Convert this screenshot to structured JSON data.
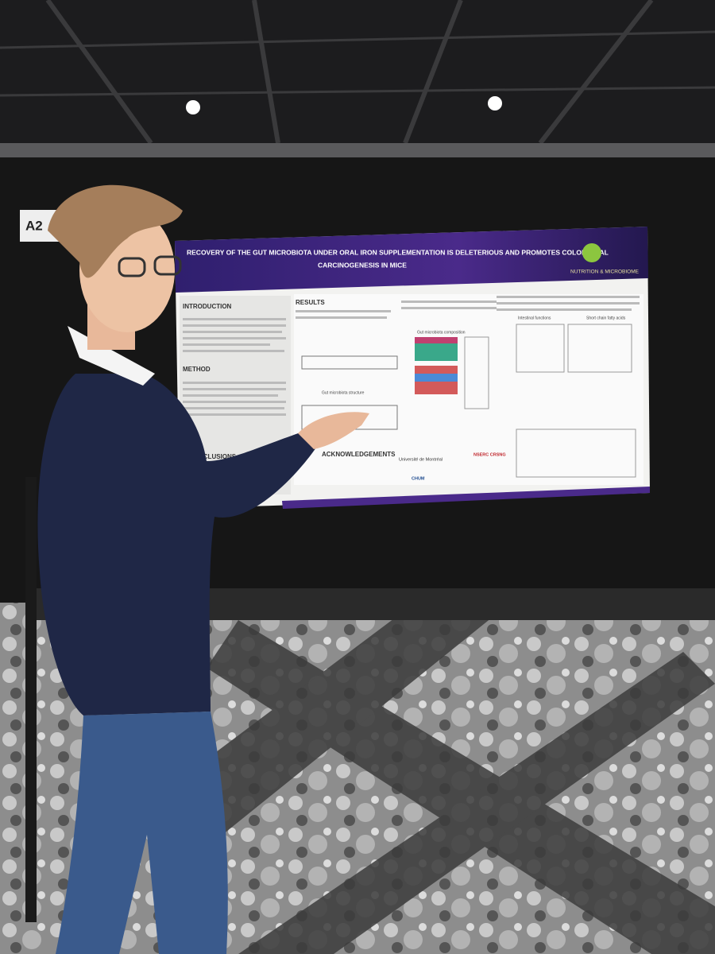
{
  "board_label": "A2",
  "poster": {
    "title_lines": [
      "RECOVERY OF THE GUT MICROBIOTA UNDER ORAL IRON SUPPLEMENTATION IS DELETERIOUS AND PROMOTES COLORECTAL",
      "CARCINOGENESIS IN MICE"
    ],
    "brand": "NUTRITION & MICROBIOME",
    "sections": [
      "INTRODUCTION",
      "METHOD",
      "CONCLUSIONS",
      "RESULTS",
      "ACKNOWLEDGEMENTS"
    ],
    "figure_titles": [
      "Gut microbiota composition",
      "Gut microbiota structure",
      "Intestinal functions",
      "Short chain fatty acids"
    ],
    "logos": [
      "Université de Montréal",
      "NSERC CRSNG",
      "CHUM"
    ]
  }
}
